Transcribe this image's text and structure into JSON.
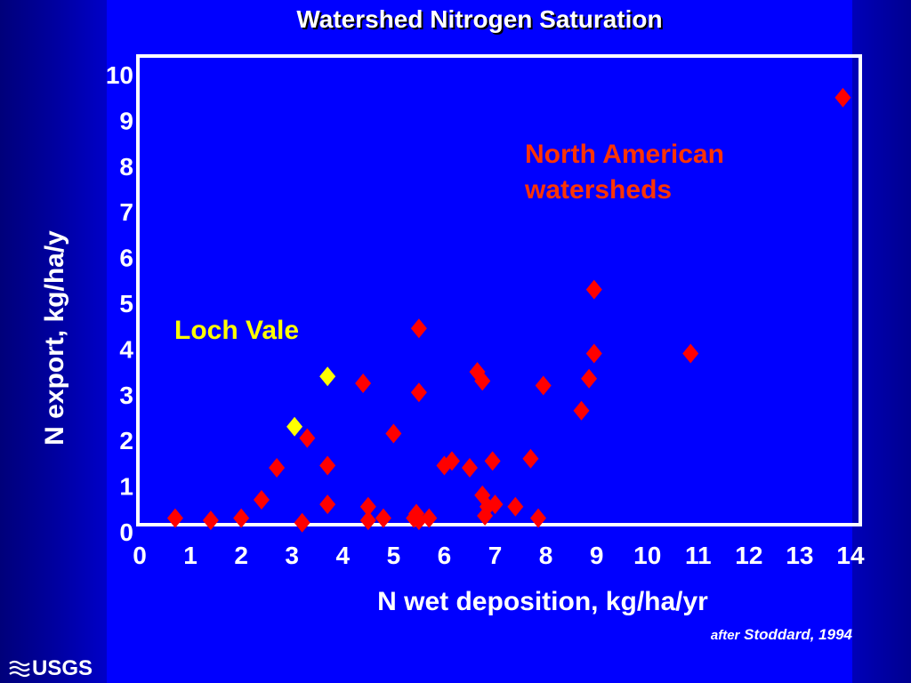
{
  "slide": {
    "title": "Watershed Nitrogen Saturation",
    "citation_after": "after",
    "citation_source": "Stoddard, 1994",
    "logo": "USGS"
  },
  "colors": {
    "background": "#0000ff",
    "frame": "#ffffff",
    "north_american": "#ff0000",
    "loch_vale": "#ffff00",
    "north_american_label": "#ff3300"
  },
  "chart_data": {
    "type": "scatter",
    "title": "Watershed Nitrogen Saturation",
    "xlabel": "N wet deposition, kg/ha/yr",
    "ylabel": "N export, kg/ha/y",
    "xlim": [
      0,
      14
    ],
    "ylim": [
      0,
      10
    ],
    "x_ticks": [
      "0",
      "1",
      "2",
      "3",
      "4",
      "5",
      "6",
      "7",
      "8",
      "9",
      "10",
      "11",
      "12",
      "13",
      "14"
    ],
    "y_ticks": [
      "0",
      "1",
      "2",
      "3",
      "4",
      "5",
      "6",
      "7",
      "8",
      "9",
      "10"
    ],
    "grid": false,
    "marker": "diamond",
    "series": [
      {
        "name": "North American watersheds",
        "color": "#ff0000",
        "points": [
          [
            0.7,
            0.3
          ],
          [
            1.4,
            0.25
          ],
          [
            2.0,
            0.3
          ],
          [
            2.4,
            0.7
          ],
          [
            2.7,
            1.4
          ],
          [
            3.2,
            0.2
          ],
          [
            3.3,
            2.05
          ],
          [
            3.7,
            1.45
          ],
          [
            3.7,
            0.6
          ],
          [
            4.4,
            3.25
          ],
          [
            4.5,
            0.25
          ],
          [
            4.5,
            0.55
          ],
          [
            4.8,
            0.3
          ],
          [
            5.0,
            2.15
          ],
          [
            5.4,
            0.3
          ],
          [
            5.45,
            0.4
          ],
          [
            5.5,
            0.25
          ],
          [
            5.7,
            0.3
          ],
          [
            5.5,
            4.45
          ],
          [
            5.5,
            3.05
          ],
          [
            6.0,
            1.45
          ],
          [
            6.15,
            1.55
          ],
          [
            6.5,
            1.4
          ],
          [
            6.65,
            3.5
          ],
          [
            6.75,
            3.3
          ],
          [
            6.75,
            0.8
          ],
          [
            6.8,
            0.35
          ],
          [
            6.85,
            0.55
          ],
          [
            6.95,
            1.55
          ],
          [
            7.0,
            0.6
          ],
          [
            7.4,
            0.55
          ],
          [
            7.7,
            1.6
          ],
          [
            7.85,
            0.3
          ],
          [
            7.95,
            3.2
          ],
          [
            8.7,
            2.65
          ],
          [
            8.85,
            3.35
          ],
          [
            8.95,
            3.9
          ],
          [
            8.95,
            5.3
          ],
          [
            10.85,
            3.9
          ],
          [
            13.85,
            9.5
          ]
        ]
      },
      {
        "name": "Loch Vale",
        "color": "#ffff00",
        "points": [
          [
            3.05,
            2.3
          ],
          [
            3.7,
            3.4
          ]
        ]
      }
    ],
    "annotations": [
      {
        "text": "North American\nwatersheds",
        "color": "#ff3300"
      },
      {
        "text": "Loch Vale",
        "color": "#ffff00"
      }
    ]
  }
}
